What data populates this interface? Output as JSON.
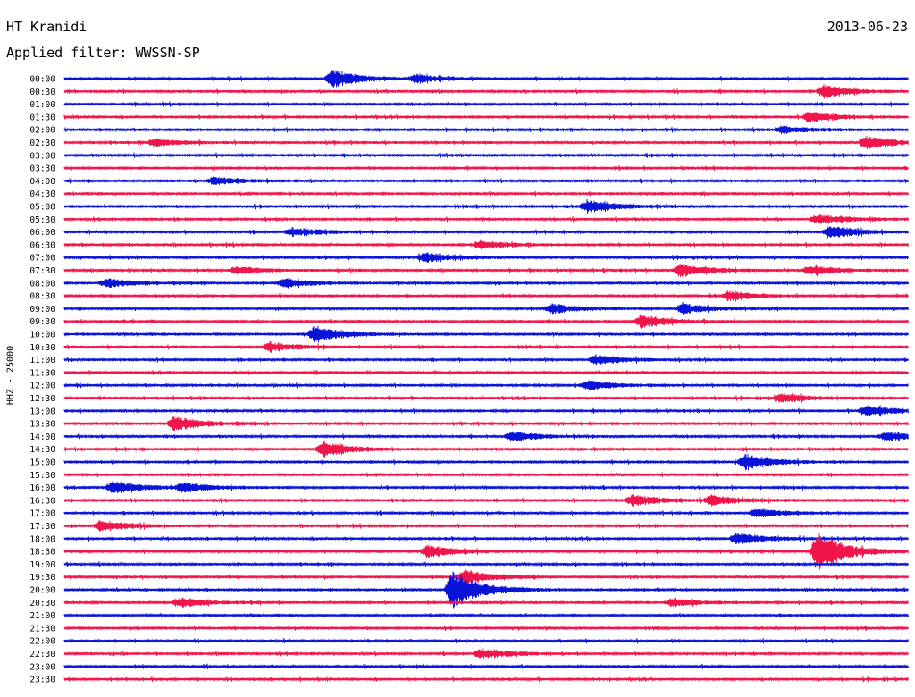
{
  "header": {
    "station": "HT Kranidi",
    "date": "2013-06-23",
    "filter": "Applied filter: WWSSN-SP"
  },
  "channel_label": "HHZ - 25000",
  "colors": {
    "even_trace": "#0a14d8",
    "odd_trace": "#f0154a"
  },
  "chart_data": {
    "type": "line",
    "title": "",
    "xlabel": "",
    "ylabel": "HHZ - 25000",
    "row_labels": [
      "00:00",
      "00:30",
      "01:00",
      "01:30",
      "02:00",
      "02:30",
      "03:00",
      "03:30",
      "04:00",
      "04:30",
      "05:00",
      "05:30",
      "06:00",
      "06:30",
      "07:00",
      "07:30",
      "08:00",
      "08:30",
      "09:00",
      "09:30",
      "10:00",
      "10:30",
      "11:00",
      "11:30",
      "12:00",
      "12:30",
      "13:00",
      "13:30",
      "14:00",
      "14:30",
      "15:00",
      "15:30",
      "16:00",
      "16:30",
      "17:00",
      "17:30",
      "18:00",
      "18:30",
      "19:00",
      "19:30",
      "20:00",
      "20:30",
      "21:00",
      "21:30",
      "22:00",
      "22:30",
      "23:00",
      "23:30"
    ],
    "row_minutes": 30,
    "events": [
      {
        "row": 0,
        "minute": 9.5,
        "amp": 10
      },
      {
        "row": 0,
        "minute": 12.5,
        "amp": 4
      },
      {
        "row": 1,
        "minute": 27,
        "amp": 7
      },
      {
        "row": 3,
        "minute": 26.5,
        "amp": 6
      },
      {
        "row": 4,
        "minute": 25.5,
        "amp": 4
      },
      {
        "row": 5,
        "minute": 3.2,
        "amp": 4
      },
      {
        "row": 5,
        "minute": 28.5,
        "amp": 7
      },
      {
        "row": 8,
        "minute": 5.3,
        "amp": 4
      },
      {
        "row": 10,
        "minute": 18.6,
        "amp": 7
      },
      {
        "row": 11,
        "minute": 26.8,
        "amp": 5
      },
      {
        "row": 12,
        "minute": 8.1,
        "amp": 4
      },
      {
        "row": 12,
        "minute": 27.2,
        "amp": 7
      },
      {
        "row": 13,
        "minute": 14.8,
        "amp": 4
      },
      {
        "row": 14,
        "minute": 12.8,
        "amp": 5
      },
      {
        "row": 15,
        "minute": 6.1,
        "amp": 4
      },
      {
        "row": 15,
        "minute": 21.9,
        "amp": 7
      },
      {
        "row": 15,
        "minute": 26.5,
        "amp": 5
      },
      {
        "row": 16,
        "minute": 1.5,
        "amp": 5
      },
      {
        "row": 16,
        "minute": 7.8,
        "amp": 5
      },
      {
        "row": 17,
        "minute": 23.6,
        "amp": 5
      },
      {
        "row": 18,
        "minute": 17.3,
        "amp": 5
      },
      {
        "row": 18,
        "minute": 22,
        "amp": 5
      },
      {
        "row": 19,
        "minute": 20.5,
        "amp": 7
      },
      {
        "row": 20,
        "minute": 8.9,
        "amp": 9
      },
      {
        "row": 21,
        "minute": 7.3,
        "amp": 5
      },
      {
        "row": 22,
        "minute": 18.9,
        "amp": 5
      },
      {
        "row": 24,
        "minute": 18.6,
        "amp": 5
      },
      {
        "row": 25,
        "minute": 25.5,
        "amp": 5
      },
      {
        "row": 26,
        "minute": 28.5,
        "amp": 6
      },
      {
        "row": 27,
        "minute": 3.9,
        "amp": 8
      },
      {
        "row": 28,
        "minute": 15.9,
        "amp": 5
      },
      {
        "row": 28,
        "minute": 29.2,
        "amp": 5
      },
      {
        "row": 29,
        "minute": 9.2,
        "amp": 8
      },
      {
        "row": 30,
        "minute": 24.2,
        "amp": 9
      },
      {
        "row": 32,
        "minute": 1.7,
        "amp": 7
      },
      {
        "row": 32,
        "minute": 4.2,
        "amp": 5
      },
      {
        "row": 33,
        "minute": 20.2,
        "amp": 6
      },
      {
        "row": 33,
        "minute": 23,
        "amp": 5
      },
      {
        "row": 34,
        "minute": 24.6,
        "amp": 5
      },
      {
        "row": 35,
        "minute": 1.3,
        "amp": 6
      },
      {
        "row": 36,
        "minute": 23.9,
        "amp": 6
      },
      {
        "row": 37,
        "minute": 12.9,
        "amp": 7
      },
      {
        "row": 37,
        "minute": 26.8,
        "amp": 22
      },
      {
        "row": 39,
        "minute": 14.2,
        "amp": 8
      },
      {
        "row": 40,
        "minute": 13.8,
        "amp": 22
      },
      {
        "row": 41,
        "minute": 4.1,
        "amp": 5
      },
      {
        "row": 41,
        "minute": 21.6,
        "amp": 4
      },
      {
        "row": 45,
        "minute": 14.8,
        "amp": 5
      }
    ]
  }
}
